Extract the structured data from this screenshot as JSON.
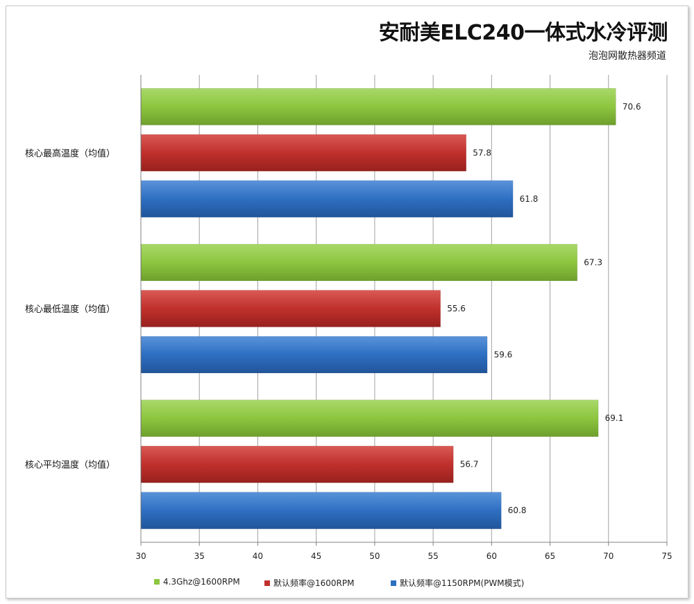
{
  "chart_data": {
    "type": "bar",
    "orientation": "horizontal",
    "title": "安耐美ELC240一体式水冷评测",
    "subtitle": "泡泡网散热器频道",
    "categories": [
      "核心最高温度（均值）",
      "核心最低温度（均值）",
      "核心平均温度（均值）"
    ],
    "series": [
      {
        "name": "4.3Ghz@1600RPM",
        "color": "#8dc63f",
        "values": [
          70.6,
          67.3,
          69.1
        ]
      },
      {
        "name": "默认频率@1600RPM",
        "color": "#c0302c",
        "values": [
          57.8,
          55.6,
          56.7
        ]
      },
      {
        "name": "默认频率@1150RPM(PWM模式)",
        "color": "#2e6fc2",
        "values": [
          61.8,
          59.6,
          60.8
        ]
      }
    ],
    "xlim": [
      30,
      75
    ],
    "xticks": [
      30,
      35,
      40,
      45,
      50,
      55,
      60,
      65,
      70,
      75
    ],
    "grid": true,
    "legend_position": "bottom"
  }
}
